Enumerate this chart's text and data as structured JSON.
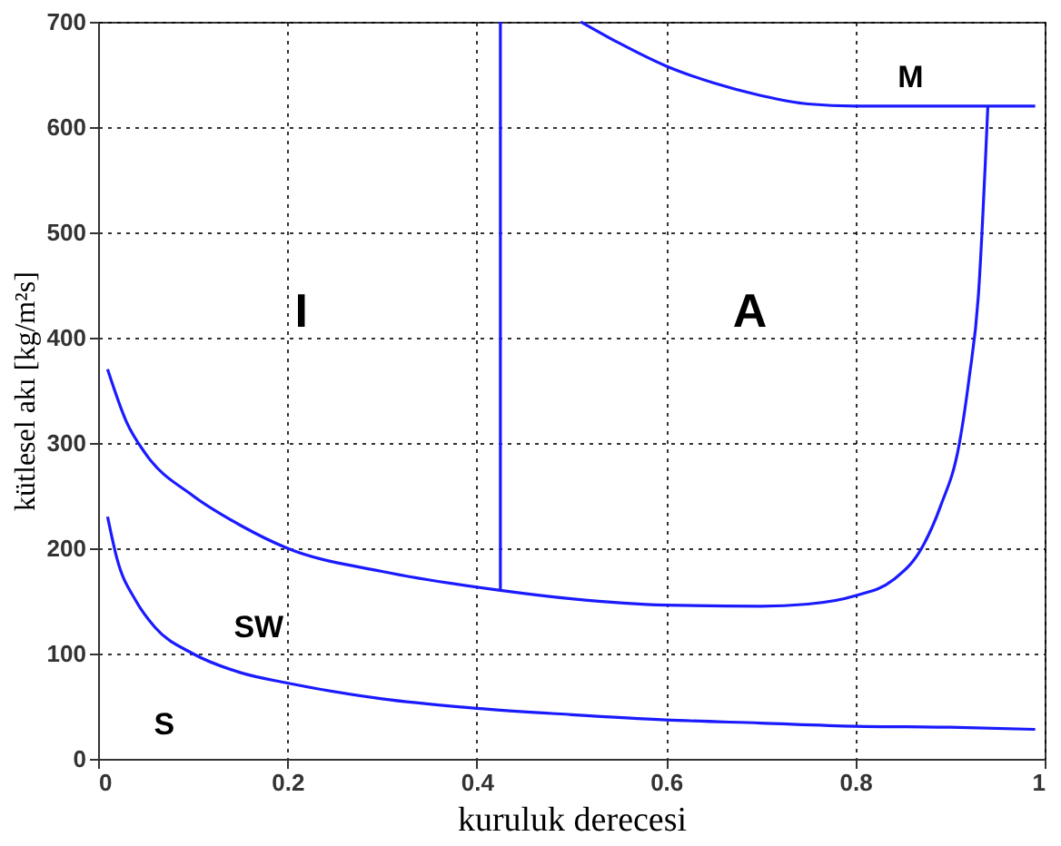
{
  "chart_data": {
    "type": "line",
    "xlabel": "kuruluk derecesi",
    "ylabel": "kütlesel akı  [kg/m²s]",
    "xlim": [
      0,
      1
    ],
    "ylim": [
      0,
      700
    ],
    "xticks": [
      0,
      0.2,
      0.4,
      0.6,
      0.8,
      1
    ],
    "yticks": [
      0,
      100,
      200,
      300,
      400,
      500,
      600,
      700
    ],
    "grid": true,
    "legend": false,
    "marker": "none",
    "line_style": "solid",
    "series": [
      {
        "color": "#1a1aff",
        "x": [
          0.01,
          0.02,
          0.04,
          0.06,
          0.1,
          0.15,
          0.2,
          0.3,
          0.4,
          0.5,
          0.6,
          0.7,
          0.8,
          0.9,
          0.99
        ],
        "values": [
          230,
          190,
          150,
          125,
          100,
          82,
          72,
          57,
          48,
          42,
          37,
          34,
          31,
          30,
          28
        ]
      },
      {
        "color": "#1a1aff",
        "x": [
          0.01,
          0.03,
          0.05,
          0.1,
          0.15,
          0.2,
          0.3,
          0.425,
          0.5,
          0.6,
          0.7,
          0.75,
          0.8,
          0.84,
          0.87,
          0.89,
          0.91,
          0.92,
          0.93,
          0.94
        ],
        "values": [
          370,
          320,
          290,
          250,
          222,
          200,
          178,
          160,
          152,
          146,
          145,
          147,
          155,
          170,
          200,
          240,
          300,
          360,
          440,
          620
        ]
      },
      {
        "color": "#1a1aff",
        "x": [
          0.425,
          0.425
        ],
        "values": [
          160,
          700
        ]
      },
      {
        "color": "#1a1aff",
        "x": [
          0.51,
          0.55,
          0.6,
          0.65,
          0.7,
          0.75,
          0.8,
          0.99
        ],
        "values": [
          700,
          680,
          658,
          642,
          630,
          622,
          620,
          620
        ]
      }
    ],
    "annotations": [
      "I",
      "A",
      "M",
      "SW",
      "S"
    ]
  }
}
